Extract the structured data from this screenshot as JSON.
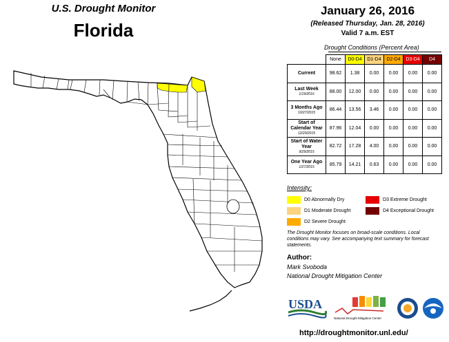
{
  "header": {
    "monitor_title": "U.S. Drought Monitor",
    "state": "Florida",
    "date": "January 26, 2016",
    "released": "(Released Thursday, Jan. 28, 2016)",
    "valid": "Valid 7 a.m. EST"
  },
  "table": {
    "title": "Drought Conditions (Percent Area)",
    "columns": [
      "None",
      "D0-D4",
      "D1-D4",
      "D2-D4",
      "D3-D4",
      "D4"
    ],
    "rows": [
      {
        "label": "Current",
        "sub": "",
        "values": [
          "98.62",
          "1.38",
          "0.00",
          "0.00",
          "0.00",
          "0.00"
        ]
      },
      {
        "label": "Last Week",
        "sub": "1/19/2016",
        "values": [
          "88.00",
          "12.00",
          "0.00",
          "0.00",
          "0.00",
          "0.00"
        ]
      },
      {
        "label": "3 Months Ago",
        "sub": "10/27/2015",
        "values": [
          "86.44",
          "13.56",
          "3.46",
          "0.00",
          "0.00",
          "0.00"
        ]
      },
      {
        "label": "Start of Calendar Year",
        "sub": "12/29/2015",
        "values": [
          "87.96",
          "12.04",
          "0.00",
          "0.00",
          "0.00",
          "0.00"
        ]
      },
      {
        "label": "Start of Water Year",
        "sub": "9/29/2015",
        "values": [
          "82.72",
          "17.28",
          "4.00",
          "0.00",
          "0.00",
          "0.00"
        ]
      },
      {
        "label": "One Year Ago",
        "sub": "1/27/2015",
        "values": [
          "85.79",
          "14.21",
          "0.63",
          "0.00",
          "0.00",
          "0.00"
        ]
      }
    ]
  },
  "legend": {
    "title": "Intensity:",
    "items": [
      {
        "label": "D0 Abnormally Dry",
        "color": "#ffff00"
      },
      {
        "label": "D1 Moderate Drought",
        "color": "#fcd37f"
      },
      {
        "label": "D2 Severe Drought",
        "color": "#ffaa00"
      },
      {
        "label": "D3 Extreme Drought",
        "color": "#e60000"
      },
      {
        "label": "D4 Exceptional Drought",
        "color": "#730000"
      }
    ]
  },
  "note": "The Drought Monitor focuses on broad-scale conditions. Local conditions may vary. See accompanying text summary for forecast statements.",
  "author": {
    "heading": "Author:",
    "name": "Mark Svoboda",
    "org": "National Drought Mitigation Center"
  },
  "logos": {
    "usda": "USDA",
    "ndmc": "National Drought Mitigation Center"
  },
  "url": "http://droughtmonitor.unl.edu/",
  "map": {
    "fill_color": "#ffffff",
    "border_color": "#000000",
    "d0_color": "#ffff00"
  }
}
